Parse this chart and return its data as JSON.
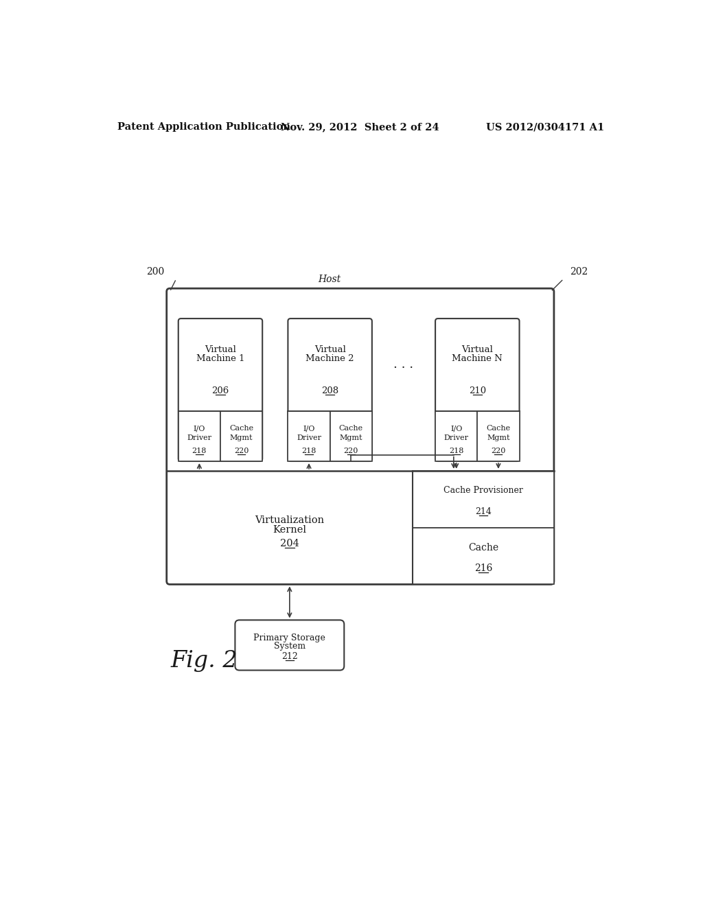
{
  "bg_color": "#ffffff",
  "header_left": "Patent Application Publication",
  "header_mid": "Nov. 29, 2012  Sheet 2 of 24",
  "header_right": "US 2012/0304171 A1",
  "fig_label": "Fig. 2",
  "label_200": "200",
  "label_202": "202",
  "label_host": "Host",
  "vm1_line1": "Virtual",
  "vm1_line2": "Machine 1",
  "vm1_num": "206",
  "vm2_line1": "Virtual",
  "vm2_line2": "Machine 2",
  "vm2_num": "208",
  "vmn_line1": "Virtual",
  "vmn_line2": "Machine N",
  "vmn_num": "210",
  "io_line1": "I/O",
  "io_line2": "Driver",
  "io_num": "218",
  "cm_line1": "Cache",
  "cm_line2": "Mgmt",
  "cm_num": "220",
  "vk_line1": "Virtualization",
  "vk_line2": "Kernel",
  "vk_num": "204",
  "cp_line1": "Cache Provisioner",
  "cp_num": "214",
  "cache_line1": "Cache",
  "cache_num": "216",
  "storage_line1": "Primary Storage",
  "storage_line2": "System",
  "storage_num": "212",
  "dots": ". . .",
  "lc": "#3a3a3a",
  "tc": "#1a1a1a",
  "header_lc": "#555555"
}
